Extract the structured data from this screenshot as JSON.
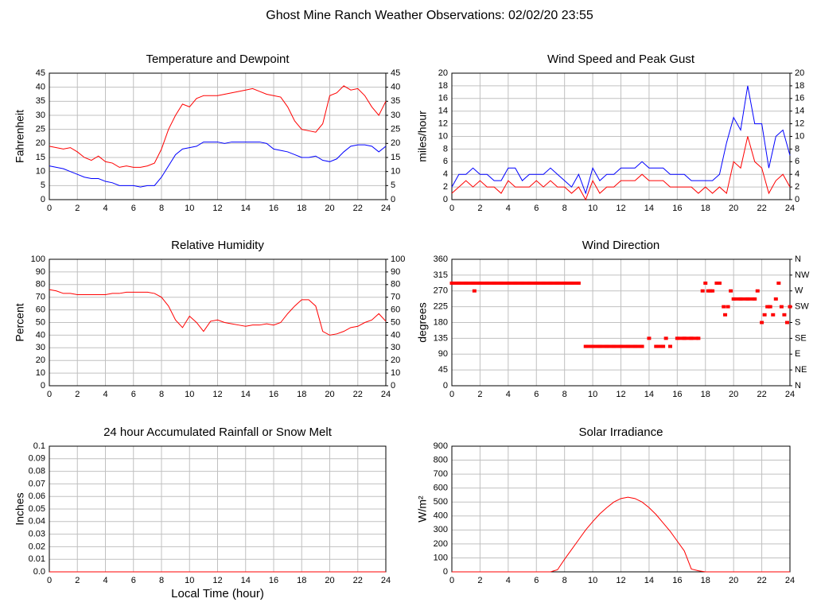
{
  "title": "Ghost Mine Ranch Weather Observations: 02/02/20 23:55",
  "chart_data": [
    {
      "type": "line",
      "title": "Temperature and Dewpoint",
      "ylabel": "Fahrenheit",
      "x": [
        0,
        0.5,
        1,
        1.5,
        2,
        2.5,
        3,
        3.5,
        4,
        4.5,
        5,
        5.5,
        6,
        6.5,
        7,
        7.5,
        8,
        8.5,
        9,
        9.5,
        10,
        10.5,
        11,
        11.5,
        12,
        12.5,
        13,
        13.5,
        14,
        14.5,
        15,
        15.5,
        16,
        16.5,
        17,
        17.5,
        18,
        18.5,
        19,
        19.5,
        20,
        20.5,
        21,
        21.5,
        22,
        22.5,
        23,
        23.5,
        24
      ],
      "series": [
        {
          "color": "#ff0000",
          "values": [
            19,
            18.5,
            18,
            18.5,
            17,
            15,
            14,
            15.5,
            13.5,
            13,
            11.5,
            12,
            11.5,
            11.5,
            12,
            13,
            18,
            25,
            30,
            34,
            33,
            36,
            37,
            37,
            37,
            37.5,
            38,
            38.5,
            39,
            39.5,
            38.5,
            37.5,
            37,
            36.5,
            33,
            28,
            25,
            24.5,
            24,
            27,
            37,
            38,
            40.5,
            39,
            39.5,
            37,
            33,
            30,
            35
          ]
        },
        {
          "color": "#0000ff",
          "values": [
            12,
            11.5,
            11,
            10,
            9,
            8,
            7.5,
            7.5,
            6.5,
            6,
            5,
            5,
            5,
            4.5,
            5,
            5,
            8,
            12,
            16,
            18,
            18.5,
            19,
            20.5,
            20.5,
            20.5,
            20,
            20.5,
            20.5,
            20.5,
            20.5,
            20.5,
            20,
            18,
            17.5,
            17,
            16,
            15,
            15,
            15.5,
            14,
            13.5,
            14.5,
            17,
            19,
            19.5,
            19.5,
            19,
            17,
            19
          ]
        }
      ],
      "xlim": [
        0,
        24
      ],
      "xticks": [
        0,
        2,
        4,
        6,
        8,
        10,
        12,
        14,
        16,
        18,
        20,
        22,
        24
      ],
      "ylim": [
        0,
        45
      ],
      "yticks": [
        0,
        5,
        10,
        15,
        20,
        25,
        30,
        35,
        40,
        45
      ],
      "y2lim": [
        0,
        45
      ],
      "y2ticks": [
        0,
        5,
        10,
        15,
        20,
        25,
        30,
        35,
        40,
        45
      ],
      "grid": true
    },
    {
      "type": "line",
      "title": "Wind Speed and Peak Gust",
      "ylabel": "miles/hour",
      "x": [
        0,
        0.5,
        1,
        1.5,
        2,
        2.5,
        3,
        3.5,
        4,
        4.5,
        5,
        5.5,
        6,
        6.5,
        7,
        7.5,
        8,
        8.5,
        9,
        9.5,
        10,
        10.5,
        11,
        11.5,
        12,
        12.5,
        13,
        13.5,
        14,
        14.5,
        15,
        15.5,
        16,
        16.5,
        17,
        17.5,
        18,
        18.5,
        19,
        19.5,
        20,
        20.5,
        21,
        21.5,
        22,
        22.5,
        23,
        23.5,
        24
      ],
      "series": [
        {
          "color": "#0000ff",
          "values": [
            2,
            4,
            4,
            5,
            4,
            4,
            3,
            3,
            5,
            5,
            3,
            4,
            4,
            4,
            5,
            4,
            3,
            2,
            4,
            1,
            5,
            3,
            4,
            4,
            5,
            5,
            5,
            6,
            5,
            5,
            5,
            4,
            4,
            4,
            3,
            3,
            3,
            3,
            4,
            9,
            13,
            11,
            18,
            12,
            12,
            5,
            10,
            11,
            7
          ]
        },
        {
          "color": "#ff0000",
          "values": [
            1,
            2,
            3,
            2,
            3,
            2,
            2,
            1,
            3,
            2,
            2,
            2,
            3,
            2,
            3,
            2,
            2,
            1,
            2,
            0,
            3,
            1,
            2,
            2,
            3,
            3,
            3,
            4,
            3,
            3,
            3,
            2,
            2,
            2,
            2,
            1,
            2,
            1,
            2,
            1,
            6,
            5,
            10,
            6,
            5,
            1,
            3,
            4,
            2
          ]
        }
      ],
      "xlim": [
        0,
        24
      ],
      "xticks": [
        0,
        2,
        4,
        6,
        8,
        10,
        12,
        14,
        16,
        18,
        20,
        22,
        24
      ],
      "ylim": [
        0,
        20
      ],
      "yticks": [
        0,
        2,
        4,
        6,
        8,
        10,
        12,
        14,
        16,
        18,
        20
      ],
      "y2lim": [
        0,
        20
      ],
      "y2ticks": [
        0,
        2,
        4,
        6,
        8,
        10,
        12,
        14,
        16,
        18,
        20
      ],
      "grid": true
    },
    {
      "type": "line",
      "title": "Relative Humidity",
      "ylabel": "Percent",
      "x": [
        0,
        0.5,
        1,
        1.5,
        2,
        2.5,
        3,
        3.5,
        4,
        4.5,
        5,
        5.5,
        6,
        6.5,
        7,
        7.5,
        8,
        8.5,
        9,
        9.5,
        10,
        10.5,
        11,
        11.5,
        12,
        12.5,
        13,
        13.5,
        14,
        14.5,
        15,
        15.5,
        16,
        16.5,
        17,
        17.5,
        18,
        18.5,
        19,
        19.5,
        20,
        20.5,
        21,
        21.5,
        22,
        22.5,
        23,
        23.5,
        24
      ],
      "series": [
        {
          "color": "#ff0000",
          "values": [
            76,
            75,
            73,
            73,
            72,
            72,
            72,
            72,
            72,
            73,
            73,
            74,
            74,
            74,
            74,
            73,
            70,
            63,
            52,
            46,
            55,
            50,
            43,
            51,
            52,
            50,
            49,
            48,
            47,
            48,
            48,
            49,
            48,
            50,
            57,
            63,
            68,
            68,
            63,
            43,
            40,
            41,
            43,
            46,
            47,
            50,
            52,
            57,
            51
          ]
        }
      ],
      "xlim": [
        0,
        24
      ],
      "xticks": [
        0,
        2,
        4,
        6,
        8,
        10,
        12,
        14,
        16,
        18,
        20,
        22,
        24
      ],
      "ylim": [
        0,
        100
      ],
      "yticks": [
        0,
        10,
        20,
        30,
        40,
        50,
        60,
        70,
        80,
        90,
        100
      ],
      "y2lim": [
        0,
        100
      ],
      "y2ticks": [
        0,
        10,
        20,
        30,
        40,
        50,
        60,
        70,
        80,
        90,
        100
      ],
      "grid": true
    },
    {
      "type": "scatter",
      "title": "Wind Direction",
      "ylabel": "degrees",
      "x": [
        0,
        0.5,
        1,
        1.5,
        2,
        2.5,
        3,
        3.5,
        4,
        4.5,
        5,
        5.5,
        6,
        6.5,
        7,
        7.5,
        8,
        8.5,
        9,
        1.6,
        9.5,
        10,
        10.5,
        11,
        11.5,
        12,
        12.5,
        13,
        13.5,
        14,
        14.5,
        15,
        15.2,
        15.5,
        16,
        16.5,
        17,
        17.5,
        17.8,
        18,
        18.2,
        18.5,
        18.8,
        19,
        19.3,
        19.4,
        19.6,
        19.8,
        20,
        20.5,
        21,
        21.5,
        21.7,
        22,
        22.2,
        22.4,
        22.6,
        22.8,
        23,
        23.2,
        23.4,
        23.6,
        23.8,
        24
      ],
      "series": [
        {
          "color": "#ff0000",
          "values": [
            292,
            292,
            292,
            292,
            292,
            292,
            292,
            292,
            292,
            292,
            292,
            292,
            292,
            292,
            292,
            292,
            292,
            292,
            292,
            270,
            112,
            112,
            112,
            112,
            112,
            112,
            112,
            112,
            112,
            135,
            112,
            112,
            135,
            112,
            135,
            135,
            135,
            135,
            270,
            292,
            270,
            270,
            292,
            292,
            225,
            202,
            225,
            270,
            247,
            247,
            247,
            247,
            270,
            180,
            202,
            225,
            225,
            202,
            247,
            292,
            225,
            202,
            180,
            225
          ]
        }
      ],
      "xlim": [
        0,
        24
      ],
      "xticks": [
        0,
        2,
        4,
        6,
        8,
        10,
        12,
        14,
        16,
        18,
        20,
        22,
        24
      ],
      "ylim": [
        0,
        360
      ],
      "yticks": [
        0,
        45,
        90,
        135,
        180,
        225,
        270,
        315,
        360
      ],
      "y2lim": [
        0,
        360
      ],
      "y2ticks": [
        {
          "value": 0,
          "label": "N"
        },
        {
          "value": 45,
          "label": "NE"
        },
        {
          "value": 90,
          "label": "E"
        },
        {
          "value": 135,
          "label": "SE"
        },
        {
          "value": 180,
          "label": "S"
        },
        {
          "value": 225,
          "label": "SW"
        },
        {
          "value": 270,
          "label": "W"
        },
        {
          "value": 315,
          "label": "NW"
        },
        {
          "value": 360,
          "label": "N"
        }
      ],
      "grid": true
    },
    {
      "type": "line",
      "title": "24 hour Accumulated Rainfall or Snow Melt",
      "ylabel": "Inches",
      "xlabel": "Local Time (hour)",
      "x": [
        0,
        24
      ],
      "series": [
        {
          "color": "#ff0000",
          "values": [
            0,
            0
          ]
        }
      ],
      "xlim": [
        0,
        24
      ],
      "xticks": [
        0,
        2,
        4,
        6,
        8,
        10,
        12,
        14,
        16,
        18,
        20,
        22,
        24
      ],
      "ylim": [
        0,
        0.1
      ],
      "yticks": [
        {
          "value": 0,
          "label": "0.0"
        },
        0.01,
        0.02,
        0.03,
        0.04,
        0.05,
        0.06,
        0.07,
        0.08,
        0.09,
        0.1
      ],
      "grid": true
    },
    {
      "type": "line",
      "title": "Solar Irradiance",
      "ylabel": "W/m²",
      "x": [
        0,
        0.5,
        1,
        1.5,
        2,
        2.5,
        3,
        3.5,
        4,
        4.5,
        5,
        5.5,
        6,
        6.5,
        7,
        7.5,
        8,
        8.5,
        9,
        9.5,
        10,
        10.5,
        11,
        11.5,
        12,
        12.5,
        13,
        13.5,
        14,
        14.5,
        15,
        15.5,
        16,
        16.5,
        17,
        17.5,
        18,
        18.5,
        19,
        19.5,
        20,
        20.5,
        21,
        21.5,
        22,
        22.5,
        23,
        23.5,
        24
      ],
      "series": [
        {
          "color": "#ff0000",
          "values": [
            0,
            0,
            0,
            0,
            0,
            0,
            0,
            0,
            0,
            0,
            0,
            0,
            0,
            0,
            0,
            15,
            90,
            160,
            230,
            300,
            360,
            415,
            460,
            500,
            525,
            535,
            525,
            500,
            460,
            410,
            350,
            290,
            220,
            150,
            20,
            8,
            0,
            0,
            0,
            0,
            0,
            0,
            0,
            0,
            0,
            0,
            0,
            0,
            0
          ]
        }
      ],
      "xlim": [
        0,
        24
      ],
      "xticks": [
        0,
        2,
        4,
        6,
        8,
        10,
        12,
        14,
        16,
        18,
        20,
        22,
        24
      ],
      "ylim": [
        0,
        900
      ],
      "yticks": [
        0,
        100,
        200,
        300,
        400,
        500,
        600,
        700,
        800,
        900
      ],
      "grid": true
    }
  ]
}
